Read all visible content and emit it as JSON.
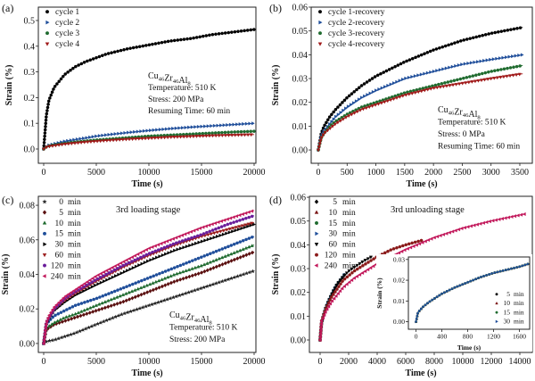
{
  "chart_data": [
    {
      "panel_label": "(a)",
      "type": "scatter",
      "xlabel": "Time (s)",
      "ylabel": "Strain (%)",
      "xlim": [
        -508,
        20170
      ],
      "ylim": [
        -0.0556,
        0.552
      ],
      "xticks": [
        [
          0,
          "0"
        ],
        [
          5000,
          "5000"
        ],
        [
          10000,
          "10000"
        ],
        [
          15000,
          "15000"
        ],
        [
          20000,
          "20000"
        ]
      ],
      "yticks": [
        [
          0,
          "0.0"
        ],
        [
          0.1,
          "0.1"
        ],
        [
          0.2,
          "0.2"
        ],
        [
          0.3,
          "0.3"
        ],
        [
          0.4,
          "0.4"
        ],
        [
          0.5,
          "0.5"
        ]
      ],
      "annotation": {
        "formula": [
          [
            "Cu",
            "46"
          ],
          [
            "Zr",
            "46"
          ],
          [
            "Al",
            "8"
          ]
        ],
        "lines": [
          "Temperature: 510 K",
          "Stress: 200 MPa",
          "Resuming Time: 60 min"
        ]
      },
      "x": [
        0,
        250,
        500,
        1000,
        2000,
        3000,
        4000,
        5000,
        6000,
        8000,
        10000,
        12000,
        14000,
        16000,
        18000,
        20000
      ],
      "series": [
        {
          "name": "cycle 1",
          "color": "#000000",
          "marker": "circle",
          "values": [
            0,
            0.13,
            0.19,
            0.24,
            0.29,
            0.32,
            0.34,
            0.355,
            0.37,
            0.39,
            0.405,
            0.42,
            0.43,
            0.445,
            0.455,
            0.465
          ]
        },
        {
          "name": "cycle 2",
          "color": "#1f4e9a",
          "marker": "right",
          "values": [
            0,
            0.01,
            0.015,
            0.02,
            0.03,
            0.037,
            0.043,
            0.05,
            0.055,
            0.064,
            0.072,
            0.079,
            0.085,
            0.09,
            0.095,
            0.1
          ]
        },
        {
          "name": "cycle 3",
          "color": "#1f6b2f",
          "marker": "circle",
          "values": [
            0,
            0.008,
            0.012,
            0.016,
            0.022,
            0.027,
            0.031,
            0.035,
            0.038,
            0.044,
            0.05,
            0.054,
            0.058,
            0.062,
            0.066,
            0.069
          ]
        },
        {
          "name": "cycle 4",
          "color": "#a01818",
          "marker": "down",
          "values": [
            0,
            0.007,
            0.01,
            0.013,
            0.019,
            0.023,
            0.027,
            0.03,
            0.033,
            0.038,
            0.042,
            0.046,
            0.049,
            0.052,
            0.054,
            0.056
          ]
        }
      ]
    },
    {
      "panel_label": "(b)",
      "type": "scatter",
      "xlabel": "Time (s)",
      "ylabel": "Strain (%)",
      "xlim": [
        -124,
        3717
      ],
      "ylim": [
        -0.0056,
        0.06
      ],
      "xticks": [
        [
          0,
          "0"
        ],
        [
          500,
          "500"
        ],
        [
          1000,
          "1000"
        ],
        [
          1500,
          "1500"
        ],
        [
          2000,
          "2000"
        ],
        [
          2500,
          "2500"
        ],
        [
          3000,
          "3000"
        ],
        [
          3500,
          "3500"
        ]
      ],
      "yticks": [
        [
          0,
          "0.00"
        ],
        [
          0.01,
          "0.01"
        ],
        [
          0.02,
          "0.02"
        ],
        [
          0.03,
          "0.03"
        ],
        [
          0.04,
          "0.04"
        ],
        [
          0.05,
          "0.05"
        ],
        [
          0.06,
          "0.06"
        ]
      ],
      "annotation": {
        "formula": [
          [
            "Cu",
            "46"
          ],
          [
            "Zr",
            "46"
          ],
          [
            "Al",
            "8"
          ]
        ],
        "lines": [
          "Temperature: 510 K",
          "Stress: 0 MPa",
          "Resuming Time: 60 min"
        ]
      },
      "x": [
        0,
        50,
        100,
        200,
        300,
        500,
        750,
        1000,
        1500,
        2000,
        2500,
        3000,
        3550
      ],
      "series": [
        {
          "name": "cycle 1-recovery",
          "color": "#000000",
          "marker": "circle",
          "values": [
            0,
            0.007,
            0.01,
            0.014,
            0.017,
            0.022,
            0.027,
            0.031,
            0.037,
            0.042,
            0.046,
            0.049,
            0.0515
          ]
        },
        {
          "name": "cycle 2-recovery",
          "color": "#1f4e9a",
          "marker": "right",
          "values": [
            0,
            0.006,
            0.008,
            0.011,
            0.014,
            0.018,
            0.022,
            0.025,
            0.03,
            0.033,
            0.036,
            0.038,
            0.04
          ]
        },
        {
          "name": "cycle 3-recovery",
          "color": "#1f6b2f",
          "marker": "circle",
          "values": [
            0,
            0.005,
            0.007,
            0.01,
            0.012,
            0.015,
            0.018,
            0.02,
            0.024,
            0.027,
            0.03,
            0.033,
            0.0355
          ]
        },
        {
          "name": "cycle 4-recovery",
          "color": "#a01818",
          "marker": "down",
          "values": [
            0,
            0.005,
            0.007,
            0.009,
            0.011,
            0.014,
            0.017,
            0.019,
            0.023,
            0.026,
            0.028,
            0.03,
            0.032
          ]
        }
      ]
    },
    {
      "panel_label": "(c)",
      "type": "scatter",
      "title": "3rd loading stage",
      "xlabel": "Time (s)",
      "ylabel": "Strain (%)",
      "xlim": [
        -508,
        20170
      ],
      "ylim": [
        -0.0052,
        0.0852
      ],
      "xticks": [
        [
          0,
          "0"
        ],
        [
          5000,
          "5000"
        ],
        [
          10000,
          "10000"
        ],
        [
          15000,
          "15000"
        ],
        [
          20000,
          "20000"
        ]
      ],
      "yticks": [
        [
          0,
          "0.00"
        ],
        [
          0.02,
          "0.02"
        ],
        [
          0.04,
          "0.04"
        ],
        [
          0.06,
          "0.06"
        ],
        [
          0.08,
          "0.08"
        ]
      ],
      "annotation": {
        "formula": [
          [
            "Cu",
            "46"
          ],
          [
            "Zr",
            "46"
          ],
          [
            "Al",
            "8"
          ]
        ],
        "lines": [
          "Temperature: 510 K",
          "Stress: 200 MPa"
        ]
      },
      "x": [
        0,
        250,
        500,
        1000,
        2000,
        3000,
        5000,
        7500,
        10000,
        12500,
        15000,
        17500,
        20000
      ],
      "series": [
        {
          "name": "0 min",
          "color": "#222222",
          "marker": "star",
          "values": [
            0,
            0.001,
            0.0015,
            0.002,
            0.004,
            0.006,
            0.011,
            0.017,
            0.022,
            0.027,
            0.032,
            0.037,
            0.042
          ]
        },
        {
          "name": "5 min",
          "color": "#5a0f0f",
          "marker": "diamond",
          "values": [
            0,
            0.008,
            0.009,
            0.011,
            0.013,
            0.015,
            0.019,
            0.024,
            0.03,
            0.036,
            0.041,
            0.047,
            0.053
          ]
        },
        {
          "name": "10 min",
          "color": "#1f6b2f",
          "marker": "up",
          "values": [
            0,
            0.009,
            0.01,
            0.012,
            0.015,
            0.017,
            0.022,
            0.028,
            0.034,
            0.04,
            0.045,
            0.051,
            0.057
          ]
        },
        {
          "name": "15 min",
          "color": "#1f4e9a",
          "marker": "circle",
          "values": [
            0,
            0.011,
            0.013,
            0.016,
            0.019,
            0.022,
            0.026,
            0.032,
            0.038,
            0.044,
            0.05,
            0.056,
            0.062
          ]
        },
        {
          "name": "30 min",
          "color": "#000000",
          "marker": "right",
          "values": [
            0,
            0.011,
            0.014,
            0.019,
            0.024,
            0.028,
            0.034,
            0.041,
            0.048,
            0.054,
            0.059,
            0.064,
            0.069
          ]
        },
        {
          "name": "60 min",
          "color": "#9b1c1c",
          "marker": "down",
          "values": [
            0,
            0.012,
            0.015,
            0.02,
            0.025,
            0.029,
            0.036,
            0.044,
            0.051,
            0.057,
            0.062,
            0.066,
            0.07
          ]
        },
        {
          "name": "120 min",
          "color": "#6a1d9a",
          "marker": "circle",
          "values": [
            0,
            0.012,
            0.015,
            0.02,
            0.026,
            0.03,
            0.037,
            0.045,
            0.052,
            0.058,
            0.063,
            0.069,
            0.074
          ]
        },
        {
          "name": "240 min",
          "color": "#c2185b",
          "marker": "left",
          "values": [
            0,
            0.012,
            0.016,
            0.021,
            0.027,
            0.031,
            0.039,
            0.047,
            0.055,
            0.061,
            0.067,
            0.072,
            0.077
          ]
        }
      ]
    },
    {
      "panel_label": "(d)",
      "type": "scatter",
      "title": "3rd unloading stage",
      "xlabel": "Time (s)",
      "ylabel": "Strain (%)",
      "xlim": [
        -750,
        14875
      ],
      "ylim": [
        -0.00525,
        0.0604
      ],
      "xticks": [
        [
          0,
          "0"
        ],
        [
          2000,
          "2000"
        ],
        [
          4000,
          "4000"
        ],
        [
          6000,
          "6000"
        ],
        [
          8000,
          "8000"
        ],
        [
          10000,
          "10000"
        ],
        [
          12000,
          "12000"
        ],
        [
          14000,
          "14000"
        ]
      ],
      "yticks": [
        [
          0,
          "0.00"
        ],
        [
          0.01,
          "0.01"
        ],
        [
          0.02,
          "0.02"
        ],
        [
          0.03,
          "0.03"
        ],
        [
          0.04,
          "0.04"
        ],
        [
          0.05,
          "0.05"
        ],
        [
          0.06,
          "0.06"
        ]
      ],
      "series": [
        {
          "name": "5 min",
          "color": "#000000",
          "marker": "diamond",
          "x": [
            0,
            100,
            200,
            400,
            600,
            800,
            1000,
            1200,
            1400,
            1600,
            1750
          ],
          "values": [
            0,
            0.007,
            0.0095,
            0.0135,
            0.0165,
            0.019,
            0.0215,
            0.0235,
            0.025,
            0.0265,
            0.028
          ]
        },
        {
          "name": "10 min",
          "color": "#7a1515",
          "marker": "up",
          "x": [
            0,
            100,
            200,
            400,
            600,
            800,
            1000,
            1200,
            1400,
            1600,
            1750
          ],
          "values": [
            0,
            0.007,
            0.0095,
            0.0135,
            0.0165,
            0.019,
            0.0215,
            0.0235,
            0.025,
            0.0265,
            0.028
          ]
        },
        {
          "name": "15 min",
          "color": "#1f6b2f",
          "marker": "circle",
          "x": [
            0,
            100,
            200,
            400,
            600,
            800,
            1000,
            1200,
            1400,
            1600,
            1750
          ],
          "values": [
            0,
            0.007,
            0.0095,
            0.0135,
            0.0165,
            0.019,
            0.0215,
            0.0235,
            0.025,
            0.0265,
            0.028
          ]
        },
        {
          "name": "30 min",
          "color": "#1f4e9a",
          "marker": "right",
          "x": [
            0,
            100,
            200,
            400,
            600,
            800,
            1000,
            1200,
            1400,
            1600,
            1750
          ],
          "values": [
            0,
            0.007,
            0.0095,
            0.0135,
            0.0165,
            0.019,
            0.0215,
            0.0235,
            0.025,
            0.0265,
            0.028
          ]
        },
        {
          "name": "60 min",
          "color": "#000000",
          "marker": "down",
          "x": [
            0,
            100,
            200,
            400,
            800,
            1200,
            1600,
            2000,
            2500,
            3000,
            3600
          ],
          "values": [
            0,
            0.007,
            0.0095,
            0.0135,
            0.019,
            0.0235,
            0.0265,
            0.029,
            0.031,
            0.033,
            0.035
          ]
        },
        {
          "name": "120 min",
          "color": "#8a1a1a",
          "marker": "circle",
          "x": [
            0,
            100,
            200,
            400,
            800,
            1600,
            2400,
            3200,
            4000,
            5000,
            6000,
            7200
          ],
          "values": [
            0,
            0.008,
            0.0095,
            0.013,
            0.018,
            0.025,
            0.029,
            0.032,
            0.035,
            0.038,
            0.04,
            0.042
          ]
        },
        {
          "name": "240 min",
          "color": "#c2185b",
          "marker": "left",
          "x": [
            0,
            100,
            200,
            400,
            800,
            1600,
            2400,
            3200,
            4000,
            6000,
            8000,
            10000,
            12000,
            14400
          ],
          "values": [
            0,
            0.008,
            0.009,
            0.012,
            0.016,
            0.022,
            0.026,
            0.029,
            0.032,
            0.038,
            0.043,
            0.047,
            0.05,
            0.053
          ]
        }
      ]
    },
    {
      "panel_label": "",
      "type": "scatter",
      "inset_of": "(d)",
      "xlabel": "Time (s)",
      "ylabel": "Strain (%)",
      "xlim": [
        -119,
        1759
      ],
      "ylim": [
        -0.0036,
        0.0312
      ],
      "xticks": [
        [
          0,
          "0"
        ],
        [
          400,
          "400"
        ],
        [
          800,
          "800"
        ],
        [
          1200,
          "1200"
        ],
        [
          1600,
          "1600"
        ]
      ],
      "yticks": [
        [
          0,
          "0.00"
        ],
        [
          0.01,
          "0.01"
        ],
        [
          0.02,
          "0.02"
        ],
        [
          0.03,
          "0.03"
        ]
      ],
      "x": [
        0,
        30,
        60,
        100,
        200,
        400,
        600,
        800,
        1000,
        1200,
        1400,
        1600,
        1750
      ],
      "series": [
        {
          "name": "5 min",
          "color": "#000000",
          "marker": "circle",
          "values": [
            0,
            0.0045,
            0.0055,
            0.007,
            0.0095,
            0.0135,
            0.0165,
            0.019,
            0.0215,
            0.0235,
            0.025,
            0.0265,
            0.028
          ]
        },
        {
          "name": "10 min",
          "color": "#7a1515",
          "marker": "up",
          "values": [
            0,
            0.0045,
            0.0055,
            0.007,
            0.0095,
            0.0135,
            0.0165,
            0.019,
            0.0215,
            0.0235,
            0.025,
            0.0265,
            0.028
          ]
        },
        {
          "name": "15 min",
          "color": "#1f6b2f",
          "marker": "circle",
          "values": [
            0,
            0.0045,
            0.0055,
            0.007,
            0.0095,
            0.0135,
            0.0165,
            0.019,
            0.0215,
            0.0235,
            0.025,
            0.0265,
            0.028
          ]
        },
        {
          "name": "30 min",
          "color": "#1f4e9a",
          "marker": "right",
          "values": [
            0,
            0.0045,
            0.0055,
            0.007,
            0.0095,
            0.0135,
            0.0165,
            0.019,
            0.0215,
            0.0235,
            0.025,
            0.0265,
            0.028
          ]
        }
      ]
    }
  ]
}
